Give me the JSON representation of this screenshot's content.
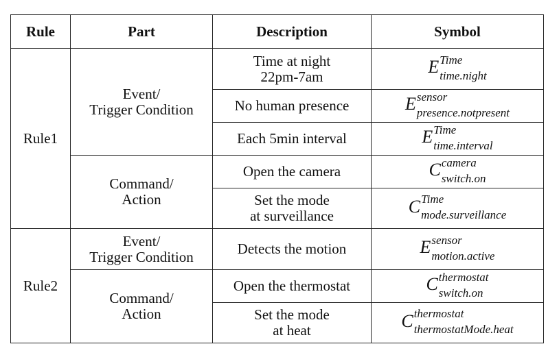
{
  "headers": {
    "rule": "Rule",
    "part": "Part",
    "description": "Description",
    "symbol": "Symbol"
  },
  "rules": [
    {
      "name": "Rule1",
      "groups": [
        {
          "part_line1": "Event/",
          "part_line2": "Trigger Condition",
          "items": [
            {
              "desc_line1": "Time at night",
              "desc_line2": "22pm-7am",
              "sym_base": "E",
              "sym_sup": "Time",
              "sym_sub": "time.night"
            },
            {
              "desc_line1": "No human presence",
              "desc_line2": "",
              "sym_base": "E",
              "sym_sup": "sensor",
              "sym_sub": "presence.notpresent"
            },
            {
              "desc_line1": "Each 5min interval",
              "desc_line2": "",
              "sym_base": "E",
              "sym_sup": "Time",
              "sym_sub": "time.interval"
            }
          ]
        },
        {
          "part_line1": "Command/",
          "part_line2": "Action",
          "items": [
            {
              "desc_line1": "Open the camera",
              "desc_line2": "",
              "sym_base": "C",
              "sym_sup": "camera",
              "sym_sub": "switch.on"
            },
            {
              "desc_line1": "Set the mode",
              "desc_line2": "at surveillance",
              "sym_base": "C",
              "sym_sup": "Time",
              "sym_sub": "mode.surveillance"
            }
          ]
        }
      ]
    },
    {
      "name": "Rule2",
      "groups": [
        {
          "part_line1": "Event/",
          "part_line2": "Trigger Condition",
          "items": [
            {
              "desc_line1": "Detects the motion",
              "desc_line2": "",
              "sym_base": "E",
              "sym_sup": "sensor",
              "sym_sub": "motion.active"
            }
          ]
        },
        {
          "part_line1": "Command/",
          "part_line2": "Action",
          "items": [
            {
              "desc_line1": "Open the thermostat",
              "desc_line2": "",
              "sym_base": "C",
              "sym_sup": "thermostat",
              "sym_sub": "switch.on"
            },
            {
              "desc_line1": "Set the mode",
              "desc_line2": "at heat",
              "sym_base": "C",
              "sym_sup": "thermostat",
              "sym_sub": "thermostatMode.heat"
            }
          ]
        }
      ]
    }
  ]
}
